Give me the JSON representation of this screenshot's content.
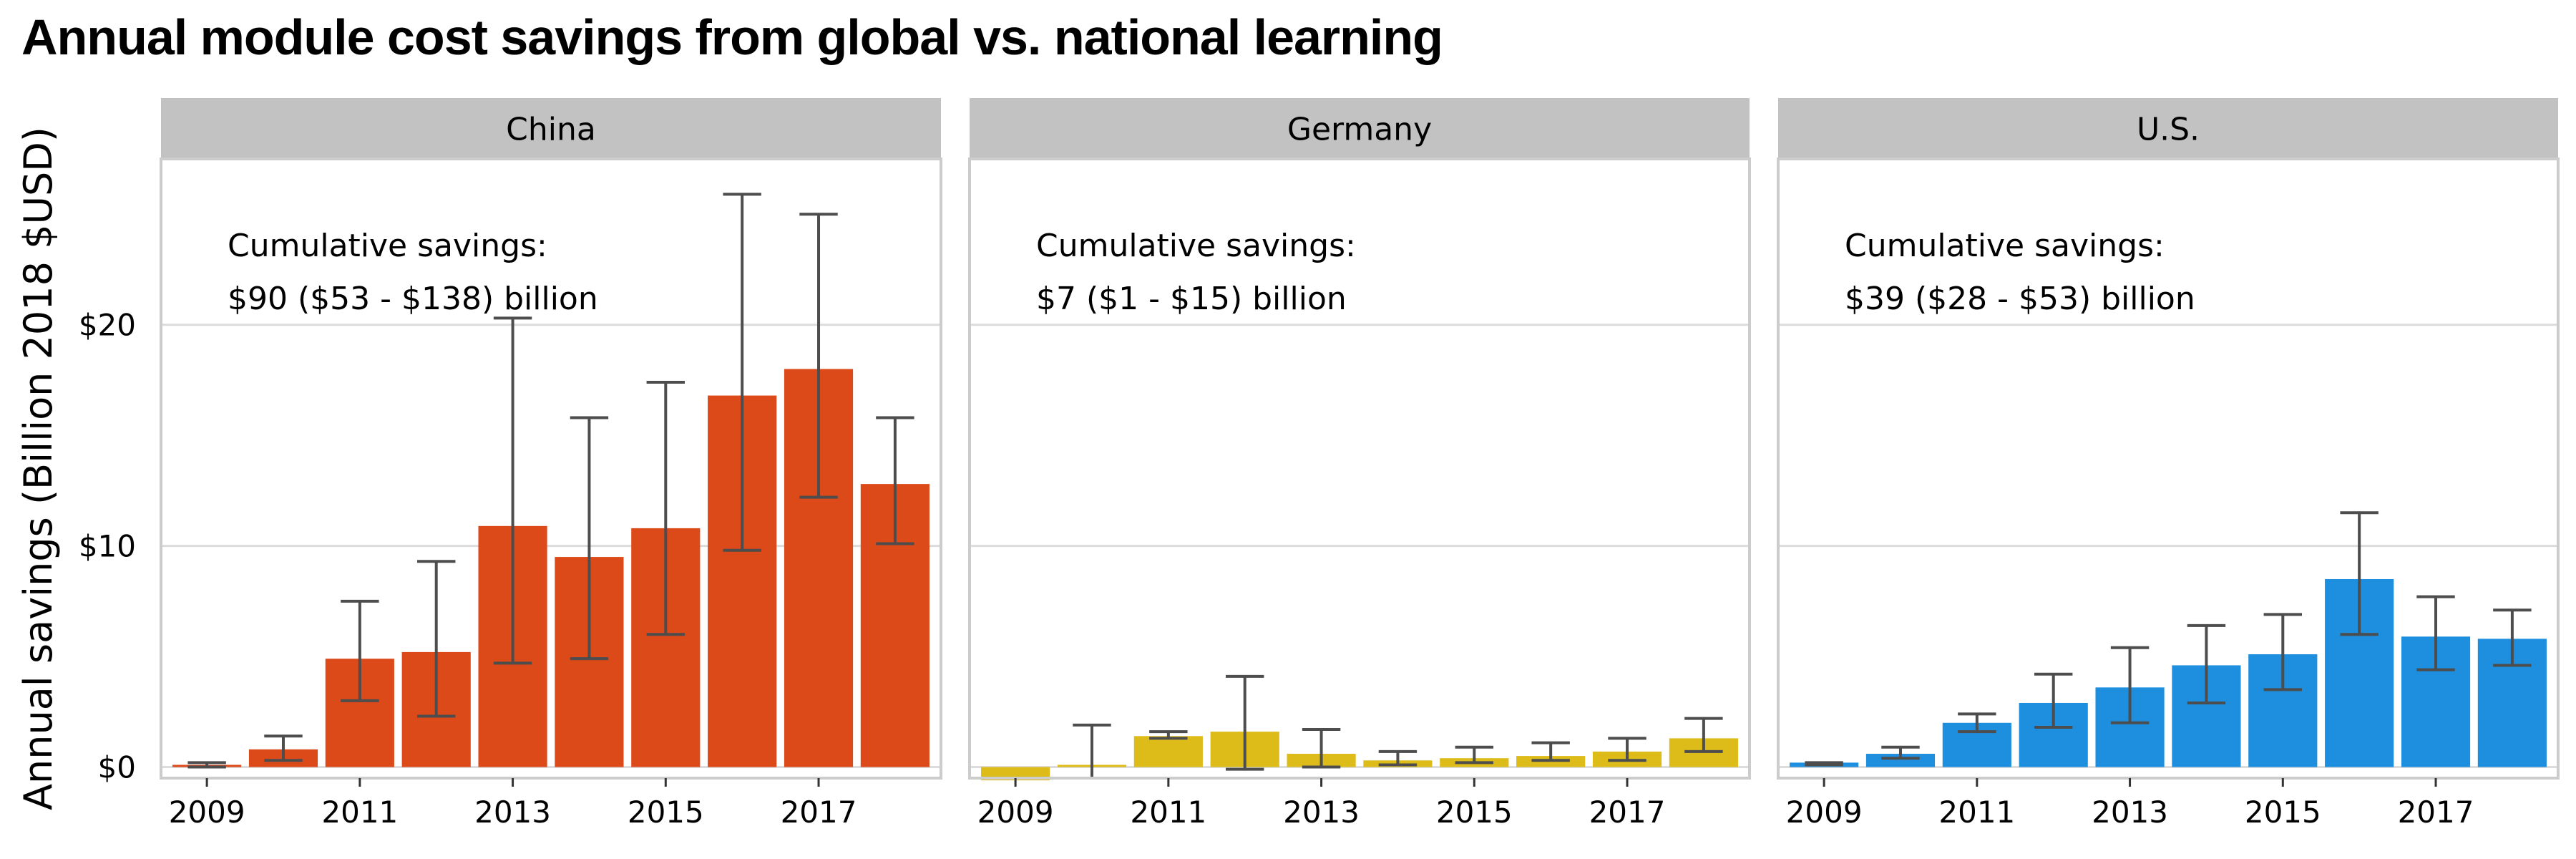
{
  "title": "Annual module cost savings from global vs. national learning",
  "chart_data": {
    "type": "bar",
    "facets": [
      "China",
      "Germany",
      "U.S."
    ],
    "ylabel": "Annual savings (Billion 2018 $USD)",
    "xlabel": "",
    "ylim": [
      -0.5,
      27.5
    ],
    "yticks": [
      0,
      10,
      20
    ],
    "ytick_labels": [
      "$0",
      "$10",
      "$20"
    ],
    "xlim": [
      2008.4,
      2018.6
    ],
    "xticks": [
      2009,
      2011,
      2013,
      2015,
      2017
    ],
    "xtick_labels": [
      "2009",
      "2011",
      "2013",
      "2015",
      "2017"
    ],
    "grid": true,
    "panels": [
      {
        "name": "China",
        "color": "#dd4a19",
        "annotation_line1": "Cumulative savings:",
        "annotation_line2": "$90 ($53 - $138) billion",
        "years": [
          2008,
          2009,
          2010,
          2011,
          2012,
          2013,
          2014,
          2015,
          2016,
          2017,
          2018
        ],
        "values": [
          null,
          0.1,
          0.8,
          4.9,
          5.2,
          10.9,
          9.5,
          10.8,
          16.8,
          18.0,
          12.8
        ],
        "lower": [
          null,
          0.0,
          0.3,
          3.0,
          2.3,
          4.7,
          4.9,
          6.0,
          9.8,
          12.2,
          10.1
        ],
        "upper": [
          null,
          0.2,
          1.4,
          7.5,
          9.3,
          20.3,
          15.8,
          17.4,
          25.9,
          25.0,
          15.8
        ]
      },
      {
        "name": "Germany",
        "color": "#ddbb18",
        "annotation_line1": "Cumulative savings:",
        "annotation_line2": "$7 ($1 - $15) billion",
        "years": [
          2008,
          2009,
          2010,
          2011,
          2012,
          2013,
          2014,
          2015,
          2016,
          2017,
          2018
        ],
        "values": [
          null,
          -0.6,
          0.1,
          1.4,
          1.6,
          0.6,
          0.3,
          0.4,
          0.5,
          0.7,
          1.3
        ],
        "lower": [
          null,
          -0.6,
          -0.8,
          1.3,
          -0.1,
          0.0,
          0.1,
          0.2,
          0.3,
          0.3,
          0.7
        ],
        "upper": [
          null,
          -0.5,
          1.9,
          1.6,
          4.1,
          1.7,
          0.7,
          0.9,
          1.1,
          1.3,
          2.2
        ]
      },
      {
        "name": "U.S.",
        "color": "#1e8fde",
        "annotation_line1": "Cumulative savings:",
        "annotation_line2": "$39 ($28 - $53) billion",
        "years": [
          2008,
          2009,
          2010,
          2011,
          2012,
          2013,
          2014,
          2015,
          2016,
          2017,
          2018
        ],
        "values": [
          null,
          0.2,
          0.6,
          2.0,
          2.9,
          3.6,
          4.6,
          5.1,
          8.5,
          5.9,
          5.8
        ],
        "lower": [
          null,
          0.1,
          0.4,
          1.6,
          1.8,
          2.0,
          2.9,
          3.5,
          6.0,
          4.4,
          4.6
        ],
        "upper": [
          null,
          0.2,
          0.9,
          2.4,
          4.2,
          5.4,
          6.4,
          6.9,
          11.5,
          7.7,
          7.1
        ]
      }
    ]
  }
}
